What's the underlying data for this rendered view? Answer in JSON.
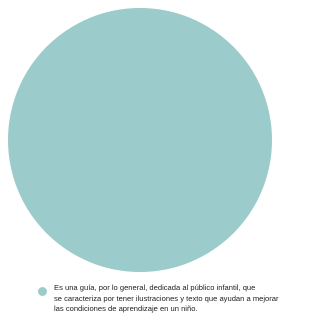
{
  "chart_data": {
    "type": "pie",
    "slices": [
      {
        "label_lines": [
          "Es una guía, por lo general, dedicada al público infantil, que",
          "se caracteriza por tener ilustraciones y texto que ayudan a mejorar",
          "las condiciones de aprendizaje en un niño."
        ],
        "value": 100,
        "color": "#9ccbcc"
      }
    ],
    "legend_position": "bottom"
  }
}
